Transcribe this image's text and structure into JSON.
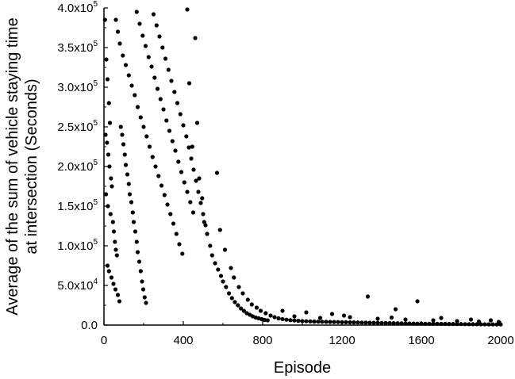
{
  "chart_data": {
    "type": "scatter",
    "xlabel": "Episode",
    "ylabel_line1": "Average of the sum of vehicle staying time",
    "ylabel_line2": "at intersection (Seconds)",
    "xlim": [
      0,
      2000
    ],
    "ylim": [
      0,
      400000
    ],
    "x_ticks": [
      0,
      400,
      800,
      1200,
      1600,
      2000
    ],
    "x_tick_labels": [
      "0",
      "400",
      "800",
      "1200",
      "1600",
      "2000"
    ],
    "y_ticks": [
      0,
      50000,
      100000,
      150000,
      200000,
      250000,
      300000,
      350000,
      400000
    ],
    "y_tick_labels": [
      {
        "mantissa": "0.0",
        "exponent": ""
      },
      {
        "mantissa": "5.0x10",
        "exponent": "4"
      },
      {
        "mantissa": "1.0x10",
        "exponent": "5"
      },
      {
        "mantissa": "1.5x10",
        "exponent": "5"
      },
      {
        "mantissa": "2.0x10",
        "exponent": "5"
      },
      {
        "mantissa": "2.5x10",
        "exponent": "5"
      },
      {
        "mantissa": "3.0x10",
        "exponent": "5"
      },
      {
        "mantissa": "3.5x10",
        "exponent": "5"
      },
      {
        "mantissa": "4.0x10",
        "exponent": "5"
      }
    ],
    "grid": false,
    "legend": "none",
    "marker_color": "#000000",
    "series": [
      {
        "points": [
          [
            5,
            385000
          ],
          [
            12,
            335000
          ],
          [
            18,
            310000
          ],
          [
            25,
            280000
          ],
          [
            30,
            255000
          ],
          [
            8,
            240000
          ],
          [
            15,
            230000
          ],
          [
            22,
            215000
          ],
          [
            28,
            200000
          ],
          [
            35,
            185000
          ],
          [
            40,
            175000
          ],
          [
            10,
            165000
          ],
          [
            20,
            150000
          ],
          [
            33,
            140000
          ],
          [
            45,
            130000
          ],
          [
            50,
            118000
          ],
          [
            55,
            105000
          ],
          [
            60,
            95000
          ],
          [
            65,
            88000
          ],
          [
            18,
            75000
          ],
          [
            25,
            68000
          ],
          [
            38,
            60000
          ],
          [
            48,
            52000
          ],
          [
            58,
            45000
          ],
          [
            70,
            38000
          ],
          [
            78,
            30000
          ],
          [
            85,
            250000
          ],
          [
            92,
            240000
          ],
          [
            98,
            228000
          ],
          [
            105,
            215000
          ],
          [
            110,
            202000
          ],
          [
            118,
            190000
          ],
          [
            125,
            178000
          ],
          [
            130,
            165000
          ],
          [
            138,
            155000
          ],
          [
            145,
            142000
          ],
          [
            150,
            130000
          ],
          [
            158,
            118000
          ],
          [
            165,
            105000
          ],
          [
            170,
            92000
          ],
          [
            178,
            80000
          ],
          [
            185,
            68000
          ],
          [
            192,
            55000
          ],
          [
            198,
            45000
          ],
          [
            205,
            35000
          ],
          [
            212,
            28000
          ],
          [
            60,
            385000
          ],
          [
            70,
            370000
          ],
          [
            80,
            355000
          ],
          [
            95,
            340000
          ],
          [
            110,
            328000
          ],
          [
            125,
            315000
          ],
          [
            140,
            302000
          ],
          [
            155,
            290000
          ],
          [
            170,
            275000
          ],
          [
            185,
            262000
          ],
          [
            200,
            250000
          ],
          [
            215,
            238000
          ],
          [
            230,
            225000
          ],
          [
            245,
            212000
          ],
          [
            260,
            200000
          ],
          [
            275,
            188000
          ],
          [
            290,
            176000
          ],
          [
            305,
            164000
          ],
          [
            320,
            152000
          ],
          [
            335,
            140000
          ],
          [
            350,
            128000
          ],
          [
            365,
            115000
          ],
          [
            380,
            102000
          ],
          [
            395,
            90000
          ],
          [
            165,
            395000
          ],
          [
            180,
            380000
          ],
          [
            195,
            365000
          ],
          [
            210,
            352000
          ],
          [
            225,
            338000
          ],
          [
            240,
            326000
          ],
          [
            255,
            312000
          ],
          [
            270,
            298000
          ],
          [
            285,
            285000
          ],
          [
            300,
            272000
          ],
          [
            315,
            258000
          ],
          [
            330,
            245000
          ],
          [
            345,
            232000
          ],
          [
            360,
            220000
          ],
          [
            375,
            206000
          ],
          [
            390,
            193000
          ],
          [
            405,
            180000
          ],
          [
            420,
            168000
          ],
          [
            435,
            155000
          ],
          [
            450,
            142000
          ],
          [
            250,
            392000
          ],
          [
            265,
            378000
          ],
          [
            280,
            364000
          ],
          [
            295,
            350000
          ],
          [
            310,
            336000
          ],
          [
            325,
            322000
          ],
          [
            340,
            308000
          ],
          [
            355,
            294000
          ],
          [
            370,
            280000
          ],
          [
            385,
            266000
          ],
          [
            400,
            252000
          ],
          [
            415,
            238000
          ],
          [
            428,
            224000
          ],
          [
            440,
            210000
          ],
          [
            452,
            196000
          ],
          [
            464,
            182000
          ],
          [
            476,
            168000
          ],
          [
            488,
            154000
          ],
          [
            500,
            140000
          ],
          [
            512,
            126000
          ],
          [
            420,
            398000
          ],
          [
            460,
            362000
          ],
          [
            430,
            305000
          ],
          [
            470,
            255000
          ],
          [
            445,
            225000
          ],
          [
            480,
            185000
          ],
          [
            495,
            160000
          ],
          [
            505,
            130000
          ],
          [
            520,
            115000
          ],
          [
            535,
            100000
          ],
          [
            545,
            88000
          ],
          [
            560,
            78000
          ],
          [
            575,
            70000
          ],
          [
            590,
            62000
          ],
          [
            600,
            55000
          ],
          [
            615,
            48000
          ],
          [
            630,
            40000
          ],
          [
            645,
            34000
          ],
          [
            660,
            29000
          ],
          [
            675,
            25000
          ],
          [
            690,
            21000
          ],
          [
            705,
            18000
          ],
          [
            720,
            15000
          ],
          [
            735,
            13000
          ],
          [
            750,
            11000
          ],
          [
            765,
            9500
          ],
          [
            780,
            8500
          ],
          [
            795,
            7500
          ],
          [
            810,
            6500
          ],
          [
            825,
            6000
          ],
          [
            570,
            192000
          ],
          [
            585,
            120000
          ],
          [
            610,
            95000
          ],
          [
            640,
            72000
          ],
          [
            655,
            60000
          ],
          [
            680,
            48000
          ],
          [
            700,
            40000
          ],
          [
            725,
            32000
          ],
          [
            745,
            26000
          ],
          [
            770,
            22000
          ],
          [
            790,
            18000
          ],
          [
            815,
            15000
          ],
          [
            840,
            12000
          ],
          [
            860,
            10000
          ],
          [
            880,
            8500
          ],
          [
            900,
            7500
          ],
          [
            920,
            6800
          ],
          [
            940,
            6200
          ],
          [
            960,
            5800
          ],
          [
            980,
            5400
          ],
          [
            1000,
            5000
          ],
          [
            1020,
            4800
          ],
          [
            1040,
            4600
          ],
          [
            1060,
            4400
          ],
          [
            1080,
            4300
          ],
          [
            1100,
            4200
          ],
          [
            1120,
            4100
          ],
          [
            1140,
            4000
          ],
          [
            1160,
            3900
          ],
          [
            1180,
            3800
          ],
          [
            1200,
            3700
          ],
          [
            1220,
            3600
          ],
          [
            1240,
            3500
          ],
          [
            1260,
            3400
          ],
          [
            1280,
            3300
          ],
          [
            1300,
            3200
          ],
          [
            1320,
            3100
          ],
          [
            1340,
            3000
          ],
          [
            1360,
            2900
          ],
          [
            1380,
            2800
          ],
          [
            1400,
            2700
          ],
          [
            1420,
            2600
          ],
          [
            1440,
            2500
          ],
          [
            1460,
            2400
          ],
          [
            1480,
            2300
          ],
          [
            1500,
            2200
          ],
          [
            1520,
            2100
          ],
          [
            1540,
            2000
          ],
          [
            1560,
            1900
          ],
          [
            1580,
            1800
          ],
          [
            1600,
            1800
          ],
          [
            1620,
            1700
          ],
          [
            1640,
            1700
          ],
          [
            1660,
            1600
          ],
          [
            1680,
            1600
          ],
          [
            1700,
            1500
          ],
          [
            1720,
            1500
          ],
          [
            1740,
            1400
          ],
          [
            1760,
            1400
          ],
          [
            1780,
            1300
          ],
          [
            1800,
            1300
          ],
          [
            1820,
            1200
          ],
          [
            1840,
            1200
          ],
          [
            1860,
            1100
          ],
          [
            1880,
            1100
          ],
          [
            1900,
            1000
          ],
          [
            1920,
            1000
          ],
          [
            1940,
            900
          ],
          [
            1960,
            900
          ],
          [
            1980,
            800
          ],
          [
            2000,
            800
          ],
          [
            1330,
            36000
          ],
          [
            1580,
            30000
          ],
          [
            1470,
            20000
          ],
          [
            1020,
            16000
          ],
          [
            1210,
            12000
          ],
          [
            1700,
            9000
          ],
          [
            1850,
            7000
          ],
          [
            1950,
            6000
          ],
          [
            1150,
            14000
          ],
          [
            900,
            18000
          ],
          [
            960,
            11000
          ],
          [
            1090,
            9000
          ],
          [
            1380,
            8000
          ],
          [
            1520,
            7000
          ],
          [
            1660,
            6000
          ],
          [
            1780,
            5000
          ],
          [
            1890,
            4500
          ],
          [
            1990,
            4000
          ],
          [
            1240,
            10000
          ],
          [
            1450,
            9500
          ]
        ]
      }
    ]
  }
}
